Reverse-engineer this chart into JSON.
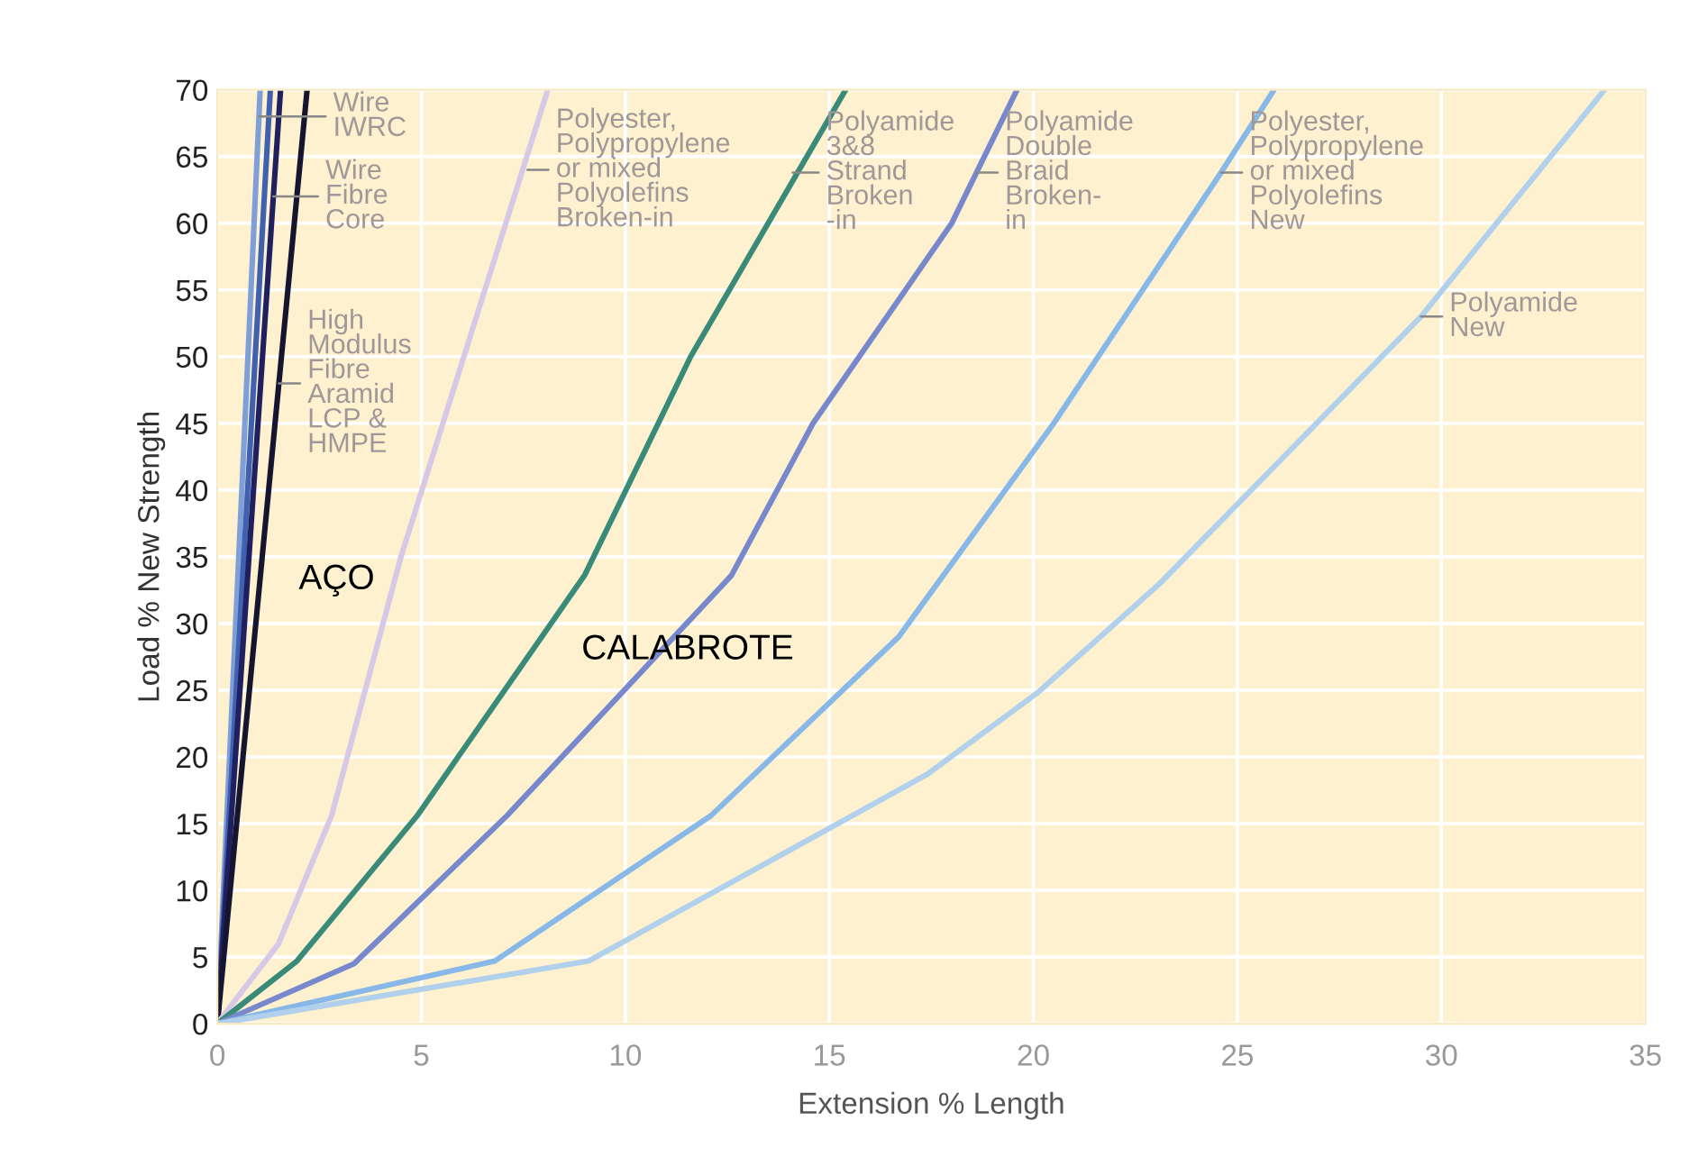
{
  "chart_data": {
    "type": "line",
    "xlabel": "Extension % Length",
    "ylabel": "Load % New Strength",
    "xlim": [
      0,
      35
    ],
    "ylim": [
      0,
      70
    ],
    "xticks": [
      0,
      5,
      10,
      15,
      20,
      25,
      30,
      35
    ],
    "yticks": [
      0,
      5,
      10,
      15,
      20,
      25,
      30,
      35,
      40,
      45,
      50,
      55,
      60,
      65,
      70
    ],
    "grid": true,
    "series": [
      {
        "color": "#7f9fd8",
        "x": [
          0,
          1.05
        ],
        "values": [
          0,
          70
        ]
      },
      {
        "color": "#4060b0",
        "x": [
          0,
          1.3
        ],
        "values": [
          0,
          70
        ]
      },
      {
        "color": "#202060",
        "x": [
          0,
          1.55
        ],
        "values": [
          0,
          70
        ]
      },
      {
        "color": "#151530",
        "x": [
          0,
          2.2
        ],
        "values": [
          0,
          70
        ]
      },
      {
        "color": "#d8c8e8",
        "x": [
          0,
          1.5,
          2.8,
          4.5,
          8.1
        ],
        "values": [
          0,
          6,
          15.6,
          35,
          70
        ]
      },
      {
        "color": "#3a8a7a",
        "x": [
          0,
          1.95,
          4.9,
          9.0,
          11.6,
          13.5,
          15.4
        ],
        "values": [
          0,
          4.7,
          15.6,
          33.6,
          50,
          60,
          70
        ]
      },
      {
        "color": "#7888cc",
        "x": [
          0,
          3.35,
          7.1,
          12.6,
          14.6,
          18.0,
          19.6
        ],
        "values": [
          0,
          4.5,
          15.6,
          33.6,
          45,
          60,
          70
        ]
      },
      {
        "color": "#88b8e8",
        "x": [
          0,
          6.8,
          12.1,
          16.7,
          20.5,
          24.6,
          25.9
        ],
        "values": [
          0,
          4.7,
          15.6,
          29,
          45,
          63.8,
          70
        ]
      },
      {
        "color": "#b0d0ec",
        "x": [
          0,
          9.1,
          17.4,
          20.1,
          23.1,
          29.5,
          34.0
        ],
        "values": [
          0,
          4.7,
          18.7,
          24.8,
          33,
          53,
          70
        ]
      }
    ],
    "annotations": [
      {
        "text": "Wire\nIWRC",
        "x": 1.02,
        "y": 68
      },
      {
        "text": "Wire\nFibre\nCore",
        "x": 1.37,
        "y": 62
      },
      {
        "text": "High\nModulus\nFibre\nAramid\nLCP &\nHMPE",
        "x": 1.51,
        "y": 48
      },
      {
        "text": "Polyester,\nPolypropylene\nor mixed\nPolyolefins\nBroken-in",
        "x": 7.6,
        "y": 64
      },
      {
        "text": "Polyamide\n3&8\nStrand\nBroken\n-in",
        "x": 14.1,
        "y": 63.8
      },
      {
        "text": "Polyamide\nDouble\nBraid\nBroken-\nin",
        "x": 18.6,
        "y": 63.8
      },
      {
        "text": "Polyester,\nPolypropylene\nor mixed\nPolyolefins\nNew",
        "x": 24.6,
        "y": 63.8
      },
      {
        "text": "Polyamide\nNew",
        "x": 29.5,
        "y": 53
      },
      "AÇO",
      "CALABROTE"
    ]
  }
}
